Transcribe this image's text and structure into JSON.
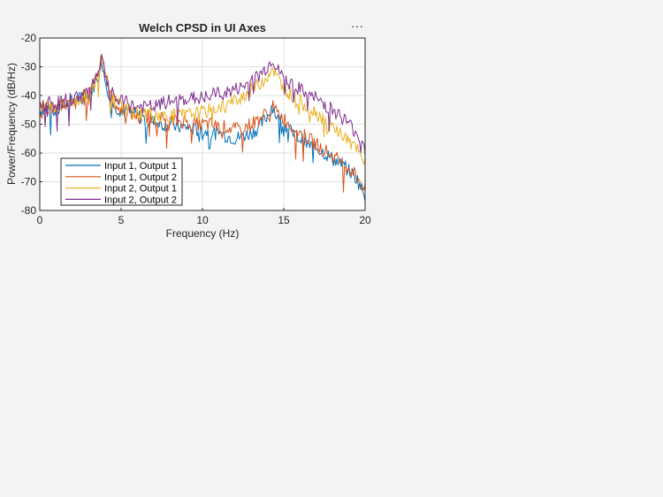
{
  "chart_data": {
    "type": "line",
    "title": "Welch CPSD in UI Axes",
    "xlabel": "Frequency (Hz)",
    "ylabel": "Power/Frequency (dB/Hz)",
    "xlim": [
      0,
      20
    ],
    "ylim": [
      -80,
      -20
    ],
    "xticks": [
      0,
      5,
      10,
      15,
      20
    ],
    "yticks": [
      -80,
      -70,
      -60,
      -50,
      -40,
      -30,
      -20
    ],
    "xtick_labels": [
      "0",
      "5",
      "10",
      "15",
      "20"
    ],
    "ytick_labels": [
      "-80",
      "-70",
      "-60",
      "-50",
      "-40",
      "-30",
      "-20"
    ],
    "grid": true,
    "legend_position": "bottom-left",
    "x": [
      0,
      0.5,
      1,
      1.5,
      2,
      2.5,
      3,
      3.3,
      3.6,
      3.8,
      4,
      4.3,
      4.6,
      5,
      5.5,
      6,
      6.5,
      7,
      7.5,
      8,
      8.5,
      9,
      9.5,
      10,
      10.5,
      11,
      11.5,
      12,
      12.5,
      13,
      13.5,
      14,
      14.3,
      14.6,
      15,
      15.5,
      16,
      16.5,
      17,
      17.5,
      18,
      18.5,
      19,
      19.5,
      20
    ],
    "series": [
      {
        "name": "Input 1, Output 1",
        "color": "#0072BD",
        "values": [
          -45,
          -44,
          -46,
          -43,
          -42,
          -41,
          -40,
          -37,
          -33,
          -27,
          -34,
          -40,
          -44,
          -45,
          -46,
          -47,
          -48,
          -49,
          -50,
          -50,
          -51,
          -51,
          -52,
          -52,
          -53,
          -53,
          -54,
          -55,
          -54,
          -53,
          -51,
          -47,
          -43,
          -48,
          -50,
          -53,
          -55,
          -57,
          -58,
          -60,
          -62,
          -64,
          -66,
          -69,
          -75
        ]
      },
      {
        "name": "Input 1, Output 2",
        "color": "#D95319",
        "values": [
          -46,
          -44,
          -45,
          -43,
          -43,
          -42,
          -40,
          -36,
          -32,
          -25,
          -32,
          -39,
          -43,
          -45,
          -46,
          -47,
          -47,
          -48,
          -48,
          -49,
          -49,
          -49,
          -50,
          -50,
          -50,
          -51,
          -51,
          -52,
          -51,
          -50,
          -48,
          -46,
          -44,
          -46,
          -48,
          -51,
          -53,
          -55,
          -57,
          -59,
          -61,
          -63,
          -65,
          -68,
          -73
        ]
      },
      {
        "name": "Input 2, Output 1",
        "color": "#EDB120",
        "values": [
          -45,
          -43,
          -44,
          -43,
          -42,
          -41,
          -39,
          -36,
          -32,
          -24,
          -31,
          -38,
          -42,
          -44,
          -45,
          -46,
          -46,
          -46,
          -47,
          -47,
          -47,
          -47,
          -46,
          -46,
          -45,
          -44,
          -43,
          -42,
          -40,
          -38,
          -36,
          -33,
          -30,
          -34,
          -37,
          -40,
          -42,
          -44,
          -46,
          -48,
          -51,
          -53,
          -56,
          -59,
          -64
        ]
      },
      {
        "name": "Input 2, Output 2",
        "color": "#7E2F8E",
        "values": [
          -43,
          -42,
          -43,
          -42,
          -41,
          -40,
          -38,
          -35,
          -31,
          -26,
          -32,
          -38,
          -41,
          -42,
          -43,
          -44,
          -44,
          -44,
          -43,
          -42,
          -42,
          -41,
          -41,
          -41,
          -40,
          -39,
          -39,
          -38,
          -37,
          -35,
          -33,
          -30,
          -27,
          -31,
          -34,
          -36,
          -38,
          -40,
          -41,
          -43,
          -45,
          -47,
          -50,
          -53,
          -59
        ]
      }
    ]
  },
  "toolbar": {
    "more_label": "···"
  }
}
